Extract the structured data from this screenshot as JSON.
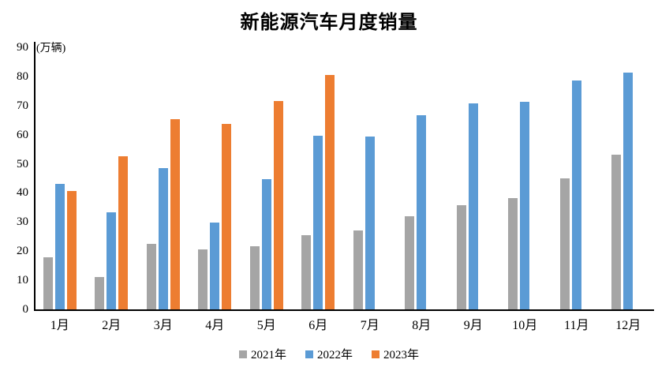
{
  "title": "新能源汽车月度销量",
  "axis_unit_label": "(万辆)",
  "chart_data": {
    "type": "bar",
    "title": "新能源汽车月度销量",
    "ylabel": "(万辆)",
    "xlabel": "",
    "categories": [
      "1月",
      "2月",
      "3月",
      "4月",
      "5月",
      "6月",
      "7月",
      "8月",
      "9月",
      "10月",
      "11月",
      "12月"
    ],
    "series": [
      {
        "name": "2021年",
        "color": "#A5A5A5",
        "values": [
          17.9,
          11.0,
          22.6,
          20.6,
          21.7,
          25.6,
          27.1,
          32.1,
          35.7,
          38.3,
          45.0,
          53.1
        ]
      },
      {
        "name": "2022年",
        "color": "#5B9BD5",
        "values": [
          43.1,
          33.4,
          48.4,
          29.9,
          44.7,
          59.6,
          59.3,
          66.6,
          70.8,
          71.4,
          78.6,
          81.4
        ]
      },
      {
        "name": "2023年",
        "color": "#ED7D31",
        "values": [
          40.8,
          52.5,
          65.3,
          63.6,
          71.7,
          80.6,
          null,
          null,
          null,
          null,
          null,
          null
        ]
      }
    ],
    "ylim": [
      0,
      90
    ],
    "ytick_step": 10,
    "grid": false,
    "legend_position": "bottom",
    "axis_color": "#000000",
    "background_color": "#ffffff"
  }
}
